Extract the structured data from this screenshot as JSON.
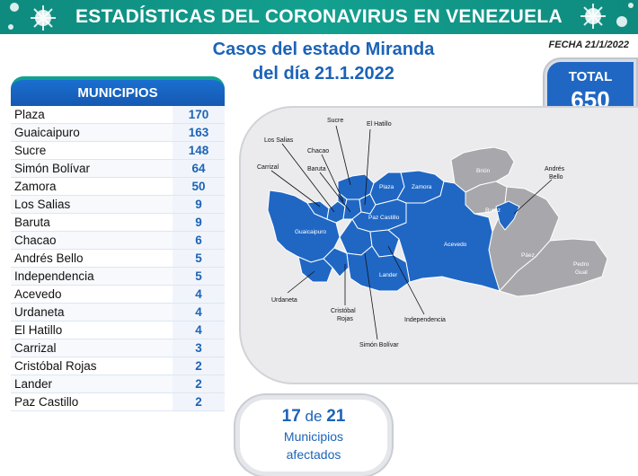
{
  "header": {
    "title": "ESTADÍSTICAS DEL CORONAVIRUS EN VENEZUELA",
    "subtitle_line1": "Casos del estado Miranda",
    "subtitle_line2": "del día 21.1.2022",
    "fecha": "FECHA 21/1/2022"
  },
  "total": {
    "label": "TOTAL",
    "value": "650"
  },
  "municipios": {
    "title": "MUNICIPIOS",
    "rows": [
      {
        "name": "Plaza",
        "value": "170"
      },
      {
        "name": "Guaicaipuro",
        "value": "163"
      },
      {
        "name": "Sucre",
        "value": "148"
      },
      {
        "name": "Simón Bolívar",
        "value": "64"
      },
      {
        "name": "Zamora",
        "value": "50"
      },
      {
        "name": "Los Salias",
        "value": "9"
      },
      {
        "name": "Baruta",
        "value": "9"
      },
      {
        "name": "Chacao",
        "value": "6"
      },
      {
        "name": "Andrés Bello",
        "value": "5"
      },
      {
        "name": "Independencia",
        "value": "5"
      },
      {
        "name": "Acevedo",
        "value": "4"
      },
      {
        "name": "Urdaneta",
        "value": "4"
      },
      {
        "name": "El Hatillo",
        "value": "4"
      },
      {
        "name": "Carrizal",
        "value": "3"
      },
      {
        "name": "Cristóbal Rojas",
        "value": "2"
      },
      {
        "name": "Lander",
        "value": "2"
      },
      {
        "name": "Paz Castillo",
        "value": "2"
      }
    ]
  },
  "map": {
    "callouts": {
      "sucre": "Sucre",
      "el_hatillo": "El Hatillo",
      "los_salias": "Los Salias",
      "chacao": "Chacao",
      "carrizal": "Carrizal",
      "baruta": "Baruta",
      "andres_bello_1": "Andrés",
      "andres_bello_2": "Bello",
      "urdaneta": "Urdaneta",
      "cristobal_rojas_1": "Cristóbal",
      "cristobal_rojas_2": "Rojas",
      "independencia": "Independencia",
      "simon_bolivar": "Simón Bolívar"
    },
    "inner": {
      "plaza": "Plaza",
      "zamora": "Zamora",
      "paz_castillo": "Paz Castillo",
      "guaicaipuro": "Guaicaipuro",
      "acevedo": "Acevedo",
      "lander": "Lander",
      "brion": "Brión",
      "buroz": "Buroz",
      "paez": "Páez",
      "pedro_gual_1": "Pedro",
      "pedro_gual_2": "Gual"
    },
    "colors": {
      "affected": "#2067c4",
      "unaffected": "#a8a8ac"
    }
  },
  "summary": {
    "affected": "17",
    "of": "de",
    "total": "21",
    "label1": "Municipios",
    "label2": "afectados"
  }
}
